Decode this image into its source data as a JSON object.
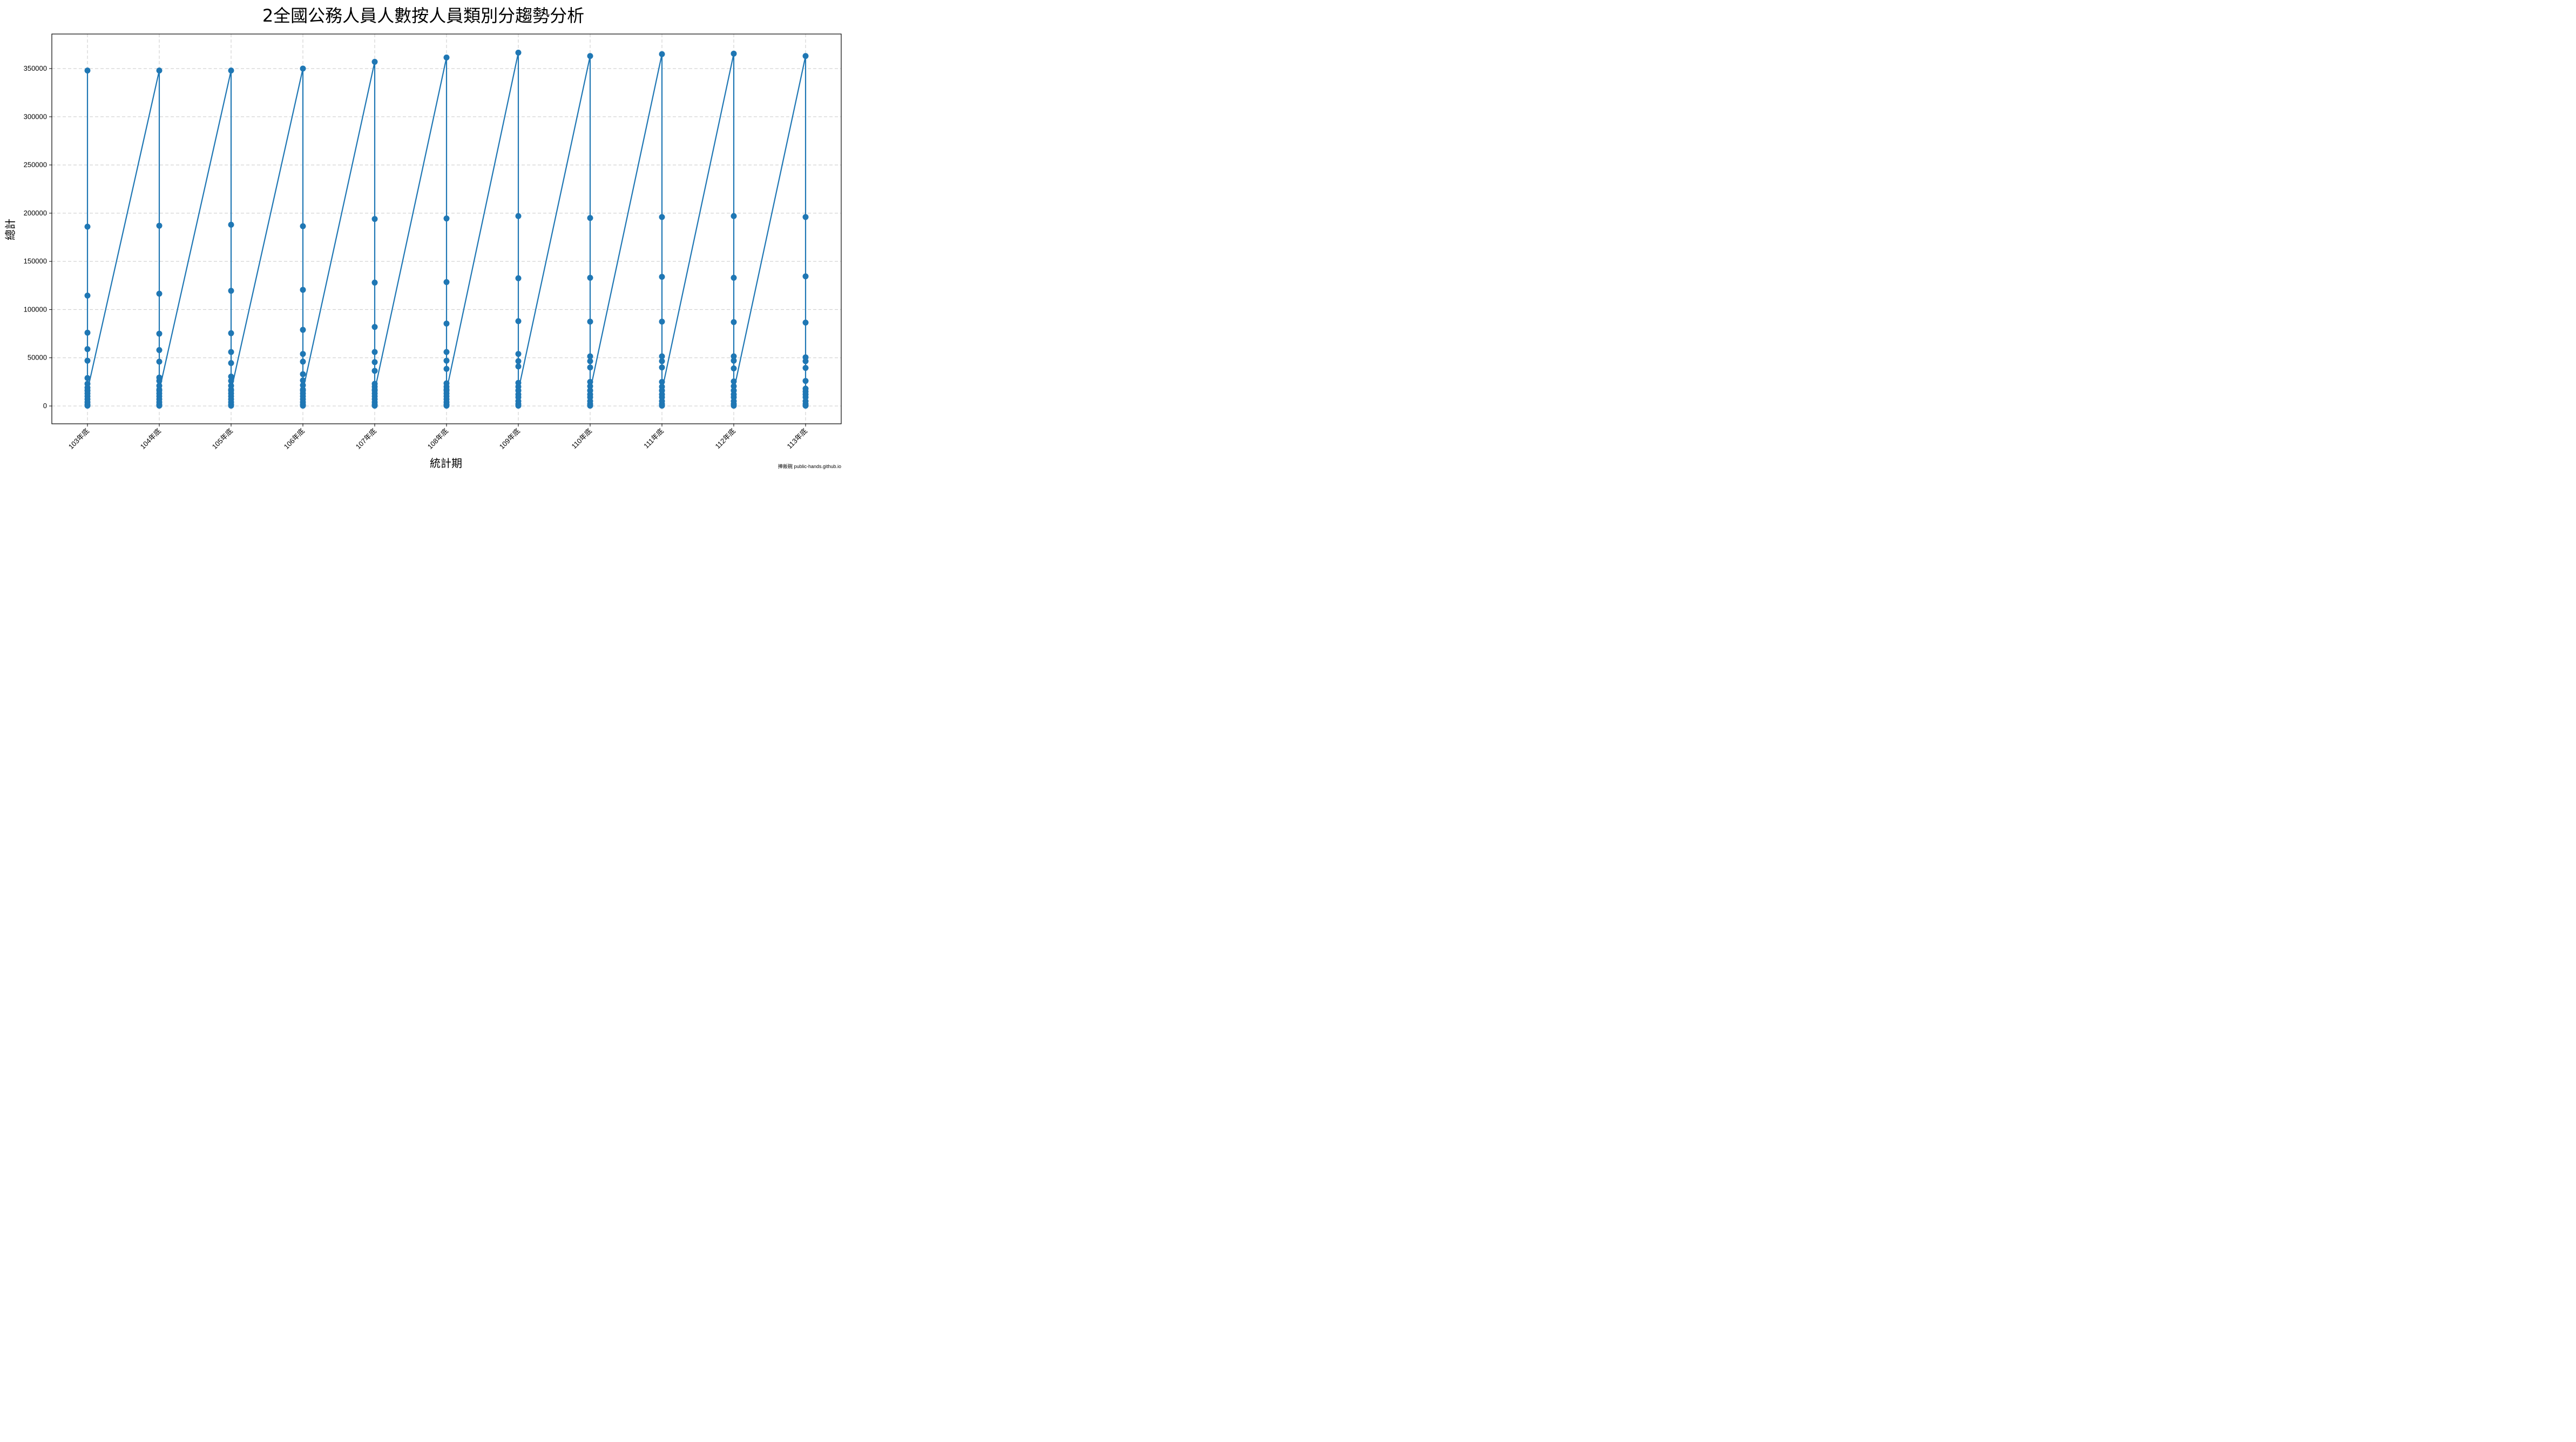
{
  "chart_data": {
    "type": "line",
    "title": "2全國公務人員人數按人員類別分趨勢分析",
    "xlabel": "統計期",
    "ylabel": "總計",
    "categories": [
      "103年底",
      "104年底",
      "105年底",
      "106年底",
      "107年底",
      "108年底",
      "109年底",
      "110年底",
      "111年底",
      "112年底",
      "113年底"
    ],
    "yticks": [
      0,
      50000,
      100000,
      150000,
      200000,
      250000,
      300000,
      350000
    ],
    "ylim": [
      -18000,
      385000
    ],
    "grid": true,
    "legend": null,
    "marker": "circle",
    "color": "#1f77b4",
    "series_per_category": [
      {
        "category": "103年底",
        "values": [
          348000,
          186000,
          114500,
          76000,
          59000,
          47000,
          29000,
          23000,
          19000,
          16000,
          13000,
          10000,
          7000,
          4000,
          1500,
          300,
          16000
        ]
      },
      {
        "category": "104年底",
        "values": [
          348000,
          187000,
          116500,
          75000,
          58000,
          46000,
          29500,
          26000,
          21000,
          17000,
          13000,
          10000,
          7000,
          4000,
          1500,
          300,
          16000
        ]
      },
      {
        "category": "105年底",
        "values": [
          348000,
          188000,
          119500,
          75500,
          56000,
          44500,
          30500,
          26000,
          21000,
          17000,
          13000,
          10000,
          7000,
          4000,
          1500,
          300,
          16000
        ]
      },
      {
        "category": "106年底",
        "values": [
          350000,
          186500,
          120500,
          79000,
          54000,
          46000,
          33000,
          26500,
          21500,
          17000,
          13000,
          10000,
          7000,
          4000,
          1500,
          300,
          16000
        ]
      },
      {
        "category": "107年底",
        "values": [
          357000,
          194000,
          128000,
          82000,
          56000,
          45500,
          36500,
          23000,
          20000,
          17000,
          13000,
          10000,
          7000,
          4000,
          1500,
          300,
          16000
        ]
      },
      {
        "category": "108年底",
        "values": [
          361500,
          194500,
          128500,
          85500,
          56000,
          47000,
          38500,
          23500,
          20000,
          17000,
          13000,
          10000,
          7000,
          4000,
          1500,
          300,
          16000
        ]
      },
      {
        "category": "109年底",
        "values": [
          366500,
          197000,
          132500,
          88000,
          54000,
          46500,
          41000,
          24000,
          20000,
          16000,
          12000,
          9000,
          5000,
          2000,
          300,
          16000
        ]
      },
      {
        "category": "110年底",
        "values": [
          363000,
          195000,
          133000,
          87500,
          51500,
          46500,
          40000,
          25000,
          20500,
          16000,
          12000,
          9000,
          5000,
          2000,
          300,
          16000
        ]
      },
      {
        "category": "111年底",
        "values": [
          365000,
          196000,
          134000,
          87500,
          51500,
          46500,
          40000,
          25000,
          20000,
          16000,
          12000,
          9000,
          5000,
          2000,
          300,
          16000
        ]
      },
      {
        "category": "112年底",
        "values": [
          365500,
          197000,
          133000,
          87000,
          51500,
          47000,
          39000,
          25500,
          20500,
          16000,
          12000,
          9000,
          5000,
          2000,
          300,
          16000
        ]
      },
      {
        "category": "113年底",
        "values": [
          363000,
          196000,
          134500,
          86500,
          50500,
          46500,
          39500,
          26000,
          18000,
          15000,
          12000,
          9000,
          5000,
          2000,
          300
        ]
      }
    ]
  },
  "footer": {
    "watermark": "捧飯碗 public-hands.github.io"
  }
}
